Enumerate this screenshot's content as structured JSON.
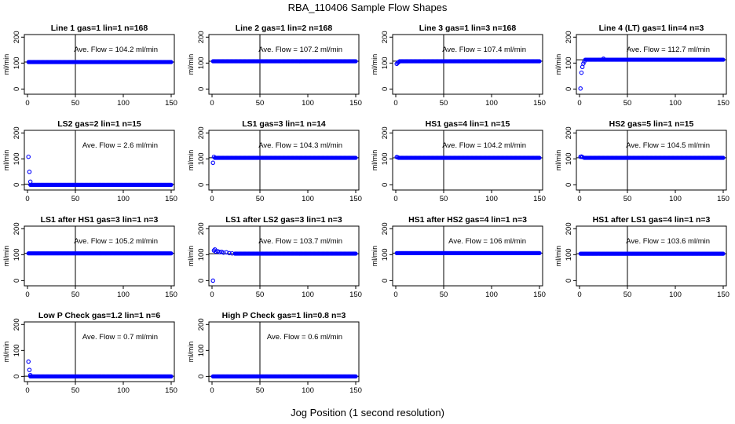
{
  "figure": {
    "title": "RBA_110406  Sample Flow Shapes",
    "xlabel": "Jog Position (1 second resolution)"
  },
  "colors": {
    "points": "#0000ff",
    "axes": "#000000",
    "background": "#ffffff"
  },
  "chart_data": [
    {
      "type": "scatter",
      "title": "Line 1 gas=1 lin=1 n=168",
      "ylabel": "ml/min",
      "annotation": "Ave. Flow = 104.2  ml/min",
      "xlim": [
        0,
        150
      ],
      "ylim": [
        -20,
        210
      ],
      "xticks": [
        0,
        50,
        100,
        150
      ],
      "yticks": [
        0,
        100,
        200
      ],
      "vline": 50,
      "hline": 104.2,
      "series": [
        {
          "x": [
            1,
            150
          ],
          "y": [
            104,
            104
          ],
          "fill": true,
          "spread": 2
        }
      ],
      "points": []
    },
    {
      "type": "scatter",
      "title": "Line 2 gas=1 lin=2 n=168",
      "ylabel": "ml/min",
      "annotation": "Ave. Flow = 107.2  ml/min",
      "xlim": [
        0,
        150
      ],
      "ylim": [
        -20,
        210
      ],
      "xticks": [
        0,
        50,
        100,
        150
      ],
      "yticks": [
        0,
        100,
        200
      ],
      "vline": 50,
      "hline": 107.2,
      "series": [
        {
          "x": [
            1,
            150
          ],
          "y": [
            107,
            107
          ],
          "fill": true,
          "spread": 2
        }
      ],
      "points": []
    },
    {
      "type": "scatter",
      "title": "Line 3 gas=1 lin=3 n=168",
      "ylabel": "ml/min",
      "annotation": "Ave. Flow = 107.4  ml/min",
      "xlim": [
        0,
        150
      ],
      "ylim": [
        -20,
        210
      ],
      "xticks": [
        0,
        50,
        100,
        150
      ],
      "yticks": [
        0,
        100,
        200
      ],
      "vline": 50,
      "hline": 107.4,
      "series": [
        {
          "x": [
            4,
            150
          ],
          "y": [
            107,
            107
          ],
          "fill": true,
          "spread": 2
        }
      ],
      "points": [
        {
          "x": 1,
          "y": 97
        },
        {
          "x": 2,
          "y": 101
        },
        {
          "x": 3,
          "y": 104
        }
      ]
    },
    {
      "type": "scatter",
      "title": "Line 4 (LT) gas=1 lin=4 n=3",
      "ylabel": "ml/min",
      "annotation": "Ave. Flow = 112.7  ml/min",
      "xlim": [
        0,
        150
      ],
      "ylim": [
        -20,
        210
      ],
      "xticks": [
        0,
        50,
        100,
        150
      ],
      "yticks": [
        0,
        100,
        200
      ],
      "vline": 50,
      "hline": 112.7,
      "series": [
        {
          "x": [
            6,
            150
          ],
          "y": [
            113,
            113
          ],
          "fill": true,
          "spread": 2
        }
      ],
      "points": [
        {
          "x": 1,
          "y": 2
        },
        {
          "x": 2,
          "y": 63
        },
        {
          "x": 3,
          "y": 85
        },
        {
          "x": 4,
          "y": 98
        },
        {
          "x": 5,
          "y": 106
        },
        {
          "x": 25,
          "y": 117
        }
      ]
    },
    {
      "type": "scatter",
      "title": "LS2 gas=2 lin=1 n=15",
      "ylabel": "ml/min",
      "annotation": "Ave. Flow = 2.6  ml/min",
      "xlim": [
        0,
        150
      ],
      "ylim": [
        -20,
        210
      ],
      "xticks": [
        0,
        50,
        100,
        150
      ],
      "yticks": [
        0,
        100,
        200
      ],
      "vline": 50,
      "hline": 2.6,
      "series": [
        {
          "x": [
            3,
            150
          ],
          "y": [
            0,
            0
          ],
          "fill": true,
          "spread": 2
        }
      ],
      "points": [
        {
          "x": 1,
          "y": 108
        },
        {
          "x": 2,
          "y": 50
        },
        {
          "x": 3,
          "y": 12
        }
      ]
    },
    {
      "type": "scatter",
      "title": "LS1 gas=3 lin=1 n=14",
      "ylabel": "ml/min",
      "annotation": "Ave. Flow = 104.3  ml/min",
      "xlim": [
        0,
        150
      ],
      "ylim": [
        -20,
        210
      ],
      "xticks": [
        0,
        50,
        100,
        150
      ],
      "yticks": [
        0,
        100,
        200
      ],
      "vline": 50,
      "hline": 104.3,
      "series": [
        {
          "x": [
            3,
            150
          ],
          "y": [
            104,
            104
          ],
          "fill": true,
          "spread": 2
        }
      ],
      "points": [
        {
          "x": 1,
          "y": 85
        },
        {
          "x": 2,
          "y": 108
        }
      ]
    },
    {
      "type": "scatter",
      "title": "HS1 gas=4 lin=1 n=15",
      "ylabel": "ml/min",
      "annotation": "Ave. Flow = 104.2  ml/min",
      "xlim": [
        0,
        150
      ],
      "ylim": [
        -20,
        210
      ],
      "xticks": [
        0,
        50,
        100,
        150
      ],
      "yticks": [
        0,
        100,
        200
      ],
      "vline": 50,
      "hline": 104.2,
      "series": [
        {
          "x": [
            3,
            150
          ],
          "y": [
            104,
            104
          ],
          "fill": true,
          "spread": 2
        }
      ],
      "points": [
        {
          "x": 1,
          "y": 107
        },
        {
          "x": 2,
          "y": 106
        }
      ]
    },
    {
      "type": "scatter",
      "title": "HS2 gas=5 lin=1 n=15",
      "ylabel": "ml/min",
      "annotation": "Ave. Flow = 104.5  ml/min",
      "xlim": [
        0,
        150
      ],
      "ylim": [
        -20,
        210
      ],
      "xticks": [
        0,
        50,
        100,
        150
      ],
      "yticks": [
        0,
        100,
        200
      ],
      "vline": 50,
      "hline": 104.5,
      "series": [
        {
          "x": [
            5,
            150
          ],
          "y": [
            104,
            104
          ],
          "fill": true,
          "spread": 2
        }
      ],
      "points": [
        {
          "x": 1,
          "y": 108
        },
        {
          "x": 2,
          "y": 109
        },
        {
          "x": 3,
          "y": 107
        }
      ]
    },
    {
      "type": "scatter",
      "title": "LS1 after HS1 gas=3 lin=1 n=3",
      "ylabel": "ml/min",
      "annotation": "Ave. Flow = 105.2  ml/min",
      "xlim": [
        0,
        150
      ],
      "ylim": [
        -20,
        210
      ],
      "xticks": [
        0,
        50,
        100,
        150
      ],
      "yticks": [
        0,
        100,
        200
      ],
      "vline": 50,
      "hline": 105.2,
      "series": [
        {
          "x": [
            1,
            150
          ],
          "y": [
            105,
            105
          ],
          "fill": true,
          "spread": 2
        }
      ],
      "points": []
    },
    {
      "type": "scatter",
      "title": "LS1 after LS2 gas=3 lin=1 n=3",
      "ylabel": "ml/min",
      "annotation": "Ave. Flow = 103.7  ml/min",
      "xlim": [
        0,
        150
      ],
      "ylim": [
        -20,
        210
      ],
      "xticks": [
        0,
        50,
        100,
        150
      ],
      "yticks": [
        0,
        100,
        200
      ],
      "vline": 50,
      "hline": 103.7,
      "series": [
        {
          "x": [
            24,
            150
          ],
          "y": [
            104,
            104
          ],
          "fill": true,
          "spread": 2
        }
      ],
      "points": [
        {
          "x": 1,
          "y": 0
        },
        {
          "x": 2,
          "y": 116
        },
        {
          "x": 3,
          "y": 120
        },
        {
          "x": 4,
          "y": 112
        },
        {
          "x": 6,
          "y": 113
        },
        {
          "x": 8,
          "y": 110
        },
        {
          "x": 10,
          "y": 111
        },
        {
          "x": 12,
          "y": 108
        },
        {
          "x": 15,
          "y": 109
        },
        {
          "x": 18,
          "y": 106
        },
        {
          "x": 21,
          "y": 105
        }
      ]
    },
    {
      "type": "scatter",
      "title": "HS1 after HS2 gas=4 lin=1 n=3",
      "ylabel": "ml/min",
      "annotation": "Ave. Flow = 106  ml/min",
      "xlim": [
        0,
        150
      ],
      "ylim": [
        -20,
        210
      ],
      "xticks": [
        0,
        50,
        100,
        150
      ],
      "yticks": [
        0,
        100,
        200
      ],
      "vline": 50,
      "hline": 106,
      "series": [
        {
          "x": [
            1,
            150
          ],
          "y": [
            106,
            106
          ],
          "fill": true,
          "spread": 2
        }
      ],
      "points": []
    },
    {
      "type": "scatter",
      "title": "HS1 after LS1 gas=4 lin=1 n=3",
      "ylabel": "ml/min",
      "annotation": "Ave. Flow = 103.6  ml/min",
      "xlim": [
        0,
        150
      ],
      "ylim": [
        -20,
        210
      ],
      "xticks": [
        0,
        50,
        100,
        150
      ],
      "yticks": [
        0,
        100,
        200
      ],
      "vline": 50,
      "hline": 103.6,
      "series": [
        {
          "x": [
            1,
            150
          ],
          "y": [
            103.6,
            103.6
          ],
          "fill": true,
          "spread": 2
        }
      ],
      "points": []
    },
    {
      "type": "scatter",
      "title": "Low P Check gas=1.2 lin=1 n=6",
      "ylabel": "ml/min",
      "annotation": "Ave. Flow = 0.7  ml/min",
      "xlim": [
        0,
        150
      ],
      "ylim": [
        -20,
        210
      ],
      "xticks": [
        0,
        50,
        100,
        150
      ],
      "yticks": [
        0,
        100,
        200
      ],
      "vline": 50,
      "hline": 0.7,
      "series": [
        {
          "x": [
            3,
            150
          ],
          "y": [
            0,
            0
          ],
          "fill": true,
          "spread": 2
        }
      ],
      "points": [
        {
          "x": 1,
          "y": 57
        },
        {
          "x": 2,
          "y": 25
        },
        {
          "x": 3,
          "y": 5
        }
      ]
    },
    {
      "type": "scatter",
      "title": "High P Check gas=1 lin=0.8 n=3",
      "ylabel": "ml/min",
      "annotation": "Ave. Flow = 0.6  ml/min",
      "xlim": [
        0,
        150
      ],
      "ylim": [
        -20,
        210
      ],
      "xticks": [
        0,
        50,
        100,
        150
      ],
      "yticks": [
        0,
        100,
        200
      ],
      "vline": 50,
      "hline": 0.6,
      "series": [
        {
          "x": [
            1,
            150
          ],
          "y": [
            0,
            0
          ],
          "fill": true,
          "spread": 2
        }
      ],
      "points": []
    }
  ]
}
